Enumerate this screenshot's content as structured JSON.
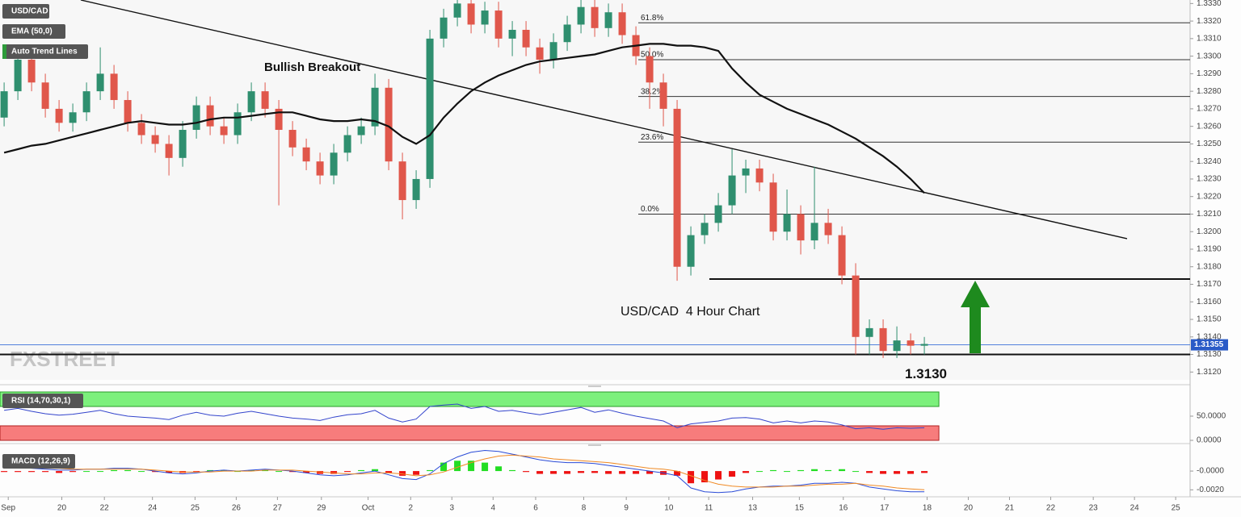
{
  "chart_data": {
    "type": "candlestick",
    "symbol": "USD/CAD",
    "indicator_labels": [
      "EMA (50,0)",
      "Auto Trend Lines"
    ],
    "watermark": "FXSTREET",
    "annotations": [
      "Bullish Breakout",
      "USD/CAD  4 Hour Chart"
    ],
    "colors": {
      "up": "#2f8f6f",
      "down": "#e0574b"
    },
    "xlim": [
      -0.3,
      86.35
    ],
    "xticks": [
      {
        "value": 0.3,
        "label": "Sep"
      },
      {
        "value": 4.2,
        "label": "20"
      },
      {
        "value": 7.3,
        "label": "22"
      },
      {
        "value": 10.8,
        "label": "24"
      },
      {
        "value": 13.9,
        "label": "25"
      },
      {
        "value": 16.9,
        "label": "26"
      },
      {
        "value": 19.9,
        "label": "27"
      },
      {
        "value": 23.1,
        "label": "29"
      },
      {
        "value": 26.5,
        "label": "Oct"
      },
      {
        "value": 29.6,
        "label": "2"
      },
      {
        "value": 32.6,
        "label": "3"
      },
      {
        "value": 35.6,
        "label": "4"
      },
      {
        "value": 38.7,
        "label": "6"
      },
      {
        "value": 42.2,
        "label": "8"
      },
      {
        "value": 45.3,
        "label": "9"
      },
      {
        "value": 48.4,
        "label": "10"
      },
      {
        "value": 51.3,
        "label": "11"
      },
      {
        "value": 54.5,
        "label": "13"
      },
      {
        "value": 57.9,
        "label": "15"
      },
      {
        "value": 61.1,
        "label": "16"
      },
      {
        "value": 64.1,
        "label": "17"
      },
      {
        "value": 67.2,
        "label": "18"
      },
      {
        "value": 70.2,
        "label": "20"
      },
      {
        "value": 73.2,
        "label": "21"
      },
      {
        "value": 76.2,
        "label": "22"
      },
      {
        "value": 79.3,
        "label": "23"
      },
      {
        "value": 82.3,
        "label": "24"
      },
      {
        "value": 85.3,
        "label": "25"
      }
    ],
    "ylim": [
      1.3116,
      1.3332
    ],
    "yticks": [
      {
        "value": 1.312,
        "label": "1.3120"
      },
      {
        "value": 1.313,
        "label": "1.3130"
      },
      {
        "value": 1.314,
        "label": "1.3140"
      },
      {
        "value": 1.315,
        "label": "1.3150"
      },
      {
        "value": 1.316,
        "label": "1.3160"
      },
      {
        "value": 1.317,
        "label": "1.3170"
      },
      {
        "value": 1.318,
        "label": "1.3180"
      },
      {
        "value": 1.319,
        "label": "1.3190"
      },
      {
        "value": 1.32,
        "label": "1.3200"
      },
      {
        "value": 1.321,
        "label": "1.3210"
      },
      {
        "value": 1.322,
        "label": "1.3220"
      },
      {
        "value": 1.323,
        "label": "1.3230"
      },
      {
        "value": 1.324,
        "label": "1.3240"
      },
      {
        "value": 1.325,
        "label": "1.3250"
      },
      {
        "value": 1.326,
        "label": "1.3260"
      },
      {
        "value": 1.327,
        "label": "1.3270"
      },
      {
        "value": 1.328,
        "label": "1.3280"
      },
      {
        "value": 1.329,
        "label": "1.3290"
      },
      {
        "value": 1.33,
        "label": "1.3300"
      },
      {
        "value": 1.331,
        "label": "1.3310"
      },
      {
        "value": 1.332,
        "label": "1.3320"
      },
      {
        "value": 1.333,
        "label": "1.3330"
      }
    ],
    "candles": [
      [
        1.3265,
        1.3285,
        1.326,
        1.328
      ],
      [
        1.328,
        1.3303,
        1.3275,
        1.3298
      ],
      [
        1.3298,
        1.3303,
        1.328,
        1.3285
      ],
      [
        1.3285,
        1.329,
        1.3265,
        1.327
      ],
      [
        1.327,
        1.3275,
        1.3257,
        1.3262
      ],
      [
        1.3262,
        1.3273,
        1.3257,
        1.3268
      ],
      [
        1.3268,
        1.3285,
        1.3263,
        1.328
      ],
      [
        1.328,
        1.3305,
        1.3275,
        1.329
      ],
      [
        1.329,
        1.3295,
        1.327,
        1.3275
      ],
      [
        1.3275,
        1.328,
        1.3257,
        1.3262
      ],
      [
        1.3262,
        1.3267,
        1.325,
        1.3255
      ],
      [
        1.3255,
        1.326,
        1.3245,
        1.325
      ],
      [
        1.325,
        1.3255,
        1.3232,
        1.3242
      ],
      [
        1.3242,
        1.3263,
        1.3237,
        1.3258
      ],
      [
        1.3258,
        1.3277,
        1.3253,
        1.3272
      ],
      [
        1.3272,
        1.3277,
        1.3255,
        1.326
      ],
      [
        1.326,
        1.3265,
        1.325,
        1.3255
      ],
      [
        1.3255,
        1.3273,
        1.325,
        1.3268
      ],
      [
        1.3268,
        1.3285,
        1.3263,
        1.328
      ],
      [
        1.328,
        1.3285,
        1.3265,
        1.327
      ],
      [
        1.327,
        1.3275,
        1.3215,
        1.3258
      ],
      [
        1.3258,
        1.3263,
        1.3243,
        1.3248
      ],
      [
        1.3248,
        1.3253,
        1.3235,
        1.324
      ],
      [
        1.324,
        1.3245,
        1.3227,
        1.3232
      ],
      [
        1.3232,
        1.325,
        1.3227,
        1.3245
      ],
      [
        1.3245,
        1.326,
        1.324,
        1.3255
      ],
      [
        1.3255,
        1.3265,
        1.325,
        1.326
      ],
      [
        1.326,
        1.329,
        1.3255,
        1.3282
      ],
      [
        1.3282,
        1.3287,
        1.3235,
        1.324
      ],
      [
        1.324,
        1.3245,
        1.3207,
        1.3218
      ],
      [
        1.3218,
        1.3235,
        1.3213,
        1.323
      ],
      [
        1.323,
        1.3315,
        1.3225,
        1.331
      ],
      [
        1.331,
        1.3327,
        1.3305,
        1.3322
      ],
      [
        1.3322,
        1.3335,
        1.3317,
        1.333
      ],
      [
        1.333,
        1.3335,
        1.3313,
        1.3318
      ],
      [
        1.3318,
        1.3331,
        1.3313,
        1.3326
      ],
      [
        1.3326,
        1.3331,
        1.3305,
        1.331
      ],
      [
        1.331,
        1.332,
        1.33,
        1.3315
      ],
      [
        1.3315,
        1.332,
        1.33,
        1.3305
      ],
      [
        1.3305,
        1.331,
        1.329,
        1.3298
      ],
      [
        1.3298,
        1.3313,
        1.3293,
        1.3308
      ],
      [
        1.3308,
        1.3323,
        1.3303,
        1.3318
      ],
      [
        1.3318,
        1.3335,
        1.3313,
        1.3328
      ],
      [
        1.3328,
        1.3333,
        1.3311,
        1.3316
      ],
      [
        1.3316,
        1.333,
        1.3311,
        1.3325
      ],
      [
        1.3325,
        1.333,
        1.3307,
        1.3312
      ],
      [
        1.3312,
        1.3317,
        1.3295,
        1.33
      ],
      [
        1.33,
        1.3305,
        1.327,
        1.3285
      ],
      [
        1.3285,
        1.329,
        1.326,
        1.327
      ],
      [
        1.327,
        1.3275,
        1.3172,
        1.318
      ],
      [
        1.318,
        1.3203,
        1.3175,
        1.3198
      ],
      [
        1.3198,
        1.321,
        1.3193,
        1.3205
      ],
      [
        1.3205,
        1.3222,
        1.32,
        1.3215
      ],
      [
        1.3215,
        1.3247,
        1.321,
        1.3232
      ],
      [
        1.3232,
        1.3241,
        1.3222,
        1.3236
      ],
      [
        1.3236,
        1.3241,
        1.3223,
        1.3228
      ],
      [
        1.3228,
        1.3233,
        1.3195,
        1.32
      ],
      [
        1.32,
        1.3224,
        1.3195,
        1.321
      ],
      [
        1.321,
        1.3215,
        1.3187,
        1.3195
      ],
      [
        1.3195,
        1.3237,
        1.319,
        1.3205
      ],
      [
        1.3205,
        1.3213,
        1.3193,
        1.3198
      ],
      [
        1.3198,
        1.3203,
        1.317,
        1.3175
      ],
      [
        1.3175,
        1.3182,
        1.313,
        1.314
      ],
      [
        1.314,
        1.315,
        1.313,
        1.3145
      ],
      [
        1.3145,
        1.315,
        1.3128,
        1.3132
      ],
      [
        1.3132,
        1.3146,
        1.3128,
        1.3138
      ],
      [
        1.3138,
        1.3142,
        1.313,
        1.3135
      ],
      [
        1.3135,
        1.314,
        1.313,
        1.3136
      ]
    ],
    "ema": {
      "color": "#111111",
      "values": [
        1.3245,
        1.3247,
        1.3249,
        1.325,
        1.3252,
        1.3254,
        1.3256,
        1.3258,
        1.326,
        1.3262,
        1.3263,
        1.3262,
        1.3261,
        1.3261,
        1.3262,
        1.3264,
        1.3265,
        1.3265,
        1.3266,
        1.3267,
        1.3268,
        1.3268,
        1.3266,
        1.3264,
        1.3263,
        1.3263,
        1.3264,
        1.3263,
        1.326,
        1.3254,
        1.325,
        1.3255,
        1.3265,
        1.3273,
        1.328,
        1.3285,
        1.3289,
        1.3292,
        1.3295,
        1.3297,
        1.3298,
        1.3299,
        1.33,
        1.3301,
        1.3303,
        1.3305,
        1.3306,
        1.3307,
        1.3307,
        1.3306,
        1.3306,
        1.3305,
        1.3303,
        1.3293,
        1.3285,
        1.3278,
        1.3274,
        1.327,
        1.3267,
        1.3264,
        1.3261,
        1.3257,
        1.3253,
        1.3248,
        1.3243,
        1.3237,
        1.323,
        1.3222
      ]
    },
    "trendline": {
      "x": [
        5.58,
        81.76
      ],
      "y": [
        1.3332,
        1.3196
      ]
    },
    "fib_levels": [
      {
        "value": 1.3319,
        "label": "61.8%"
      },
      {
        "value": 1.3298,
        "label": "50.0%"
      },
      {
        "value": 1.3277,
        "label": "38.2%"
      },
      {
        "value": 1.3251,
        "label": "23.6%"
      },
      {
        "value": 1.321,
        "label": "0.0%"
      }
    ],
    "support_lines": [
      {
        "value": 1.3173
      },
      {
        "value": 1.313,
        "label": "1.3130"
      }
    ],
    "last_price": 1.31355,
    "rsi": {
      "label": "RSI (14,70,30,1)",
      "ylim": [
        0,
        100
      ],
      "yticks": [
        {
          "value": 50,
          "label": "50.0000"
        },
        {
          "value": 0,
          "label": "0.0000"
        }
      ],
      "overbought": 70,
      "oversold": 30,
      "color": "#3344cc",
      "values": [
        62,
        66,
        60,
        55,
        52,
        54,
        58,
        62,
        55,
        50,
        48,
        46,
        43,
        52,
        58,
        52,
        50,
        56,
        60,
        55,
        50,
        46,
        44,
        41,
        48,
        53,
        55,
        62,
        46,
        38,
        44,
        70,
        73,
        75,
        66,
        70,
        60,
        62,
        57,
        53,
        58,
        63,
        68,
        58,
        63,
        56,
        50,
        45,
        40,
        26,
        34,
        37,
        40,
        46,
        47,
        44,
        36,
        40,
        36,
        40,
        38,
        32,
        24,
        26,
        23,
        26,
        25,
        26
      ]
    },
    "macd": {
      "label": "MACD (12,26,9)",
      "ylim": [
        -0.0024,
        0.0025
      ],
      "yticks": [
        {
          "value": 0,
          "label": "-0.0000"
        },
        {
          "value": -0.002,
          "label": "-0.0020"
        }
      ],
      "macd_color": "#2a4bd7",
      "signal_color": "#f08a24",
      "hist_up": "#22dd22",
      "hist_down": "#ee1111",
      "macd": [
        0.0005,
        0.0004,
        0.0003,
        0.0002,
        0.0001,
        0.0001,
        0.0002,
        0.0002,
        0.0003,
        0.0003,
        0.0002,
        0,
        -0.0002,
        -0.0003,
        -0.0002,
        0,
        0.0001,
        0,
        0.0001,
        0.0002,
        0.0001,
        0,
        -0.0002,
        -0.0004,
        -0.0005,
        -0.0004,
        -0.0002,
        0,
        -0.0004,
        -0.0008,
        -0.0009,
        -0.0003,
        0.0008,
        0.0015,
        0.002,
        0.0022,
        0.0021,
        0.0018,
        0.0015,
        0.0012,
        0.001,
        0.0009,
        0.0009,
        0.0008,
        0.0006,
        0.0004,
        0.0002,
        0,
        -0.0002,
        -0.0005,
        -0.0018,
        -0.0022,
        -0.0023,
        -0.0022,
        -0.0019,
        -0.0017,
        -0.0016,
        -0.0016,
        -0.0015,
        -0.0013,
        -0.0013,
        -0.0012,
        -0.0013,
        -0.0017,
        -0.0019,
        -0.0021,
        -0.0022,
        -0.0022
      ],
      "signal": [
        0.0006,
        0.0005,
        0.0004,
        0.0003,
        0.0003,
        0.0002,
        0.0002,
        0.0002,
        0.0002,
        0.0002,
        0.0002,
        0.0001,
        0,
        -0.0001,
        -0.0001,
        -0.0001,
        0,
        0,
        0,
        0.0001,
        0.0001,
        0.0001,
        0,
        -0.0001,
        -0.0002,
        -0.0003,
        -0.0003,
        -0.0002,
        -0.0002,
        -0.0003,
        -0.0005,
        -0.0004,
        -0.0001,
        0.0004,
        0.0009,
        0.0013,
        0.0016,
        0.0017,
        0.0016,
        0.0015,
        0.0013,
        0.0012,
        0.0011,
        0.001,
        0.0009,
        0.0007,
        0.0005,
        0.0003,
        0.0002,
        0,
        -0.0005,
        -0.001,
        -0.0014,
        -0.0016,
        -0.0017,
        -0.0017,
        -0.0017,
        -0.0016,
        -0.0016,
        -0.0015,
        -0.0014,
        -0.0014,
        -0.0013,
        -0.0015,
        -0.0016,
        -0.0018,
        -0.0019,
        -0.002
      ],
      "hist": [
        -0.0001,
        -0.0001,
        -0.0001,
        -0.0001,
        -0.0002,
        -0.0001,
        0,
        0,
        0.0001,
        0.0001,
        0,
        -0.0001,
        -0.0002,
        -0.0002,
        -0.0001,
        0.0001,
        0.0001,
        0,
        0.0001,
        0.0001,
        0,
        -0.0001,
        -0.0002,
        -0.0003,
        -0.0003,
        -0.0001,
        0.0001,
        0.0002,
        -0.0002,
        -0.0005,
        -0.0004,
        0.0001,
        0.0009,
        0.0011,
        0.0011,
        0.0009,
        0.0005,
        0.0001,
        -0.0001,
        -0.0003,
        -0.0003,
        -0.0003,
        -0.0002,
        -0.0002,
        -0.0003,
        -0.0003,
        -0.0003,
        -0.0003,
        -0.0004,
        -0.0005,
        -0.0013,
        -0.0012,
        -0.0009,
        -0.0006,
        -0.0002,
        0,
        0.0001,
        0,
        0.0001,
        0.0002,
        0.0001,
        0.0002,
        0,
        -0.0002,
        -0.0003,
        -0.0003,
        -0.0003,
        -0.0002
      ]
    }
  }
}
